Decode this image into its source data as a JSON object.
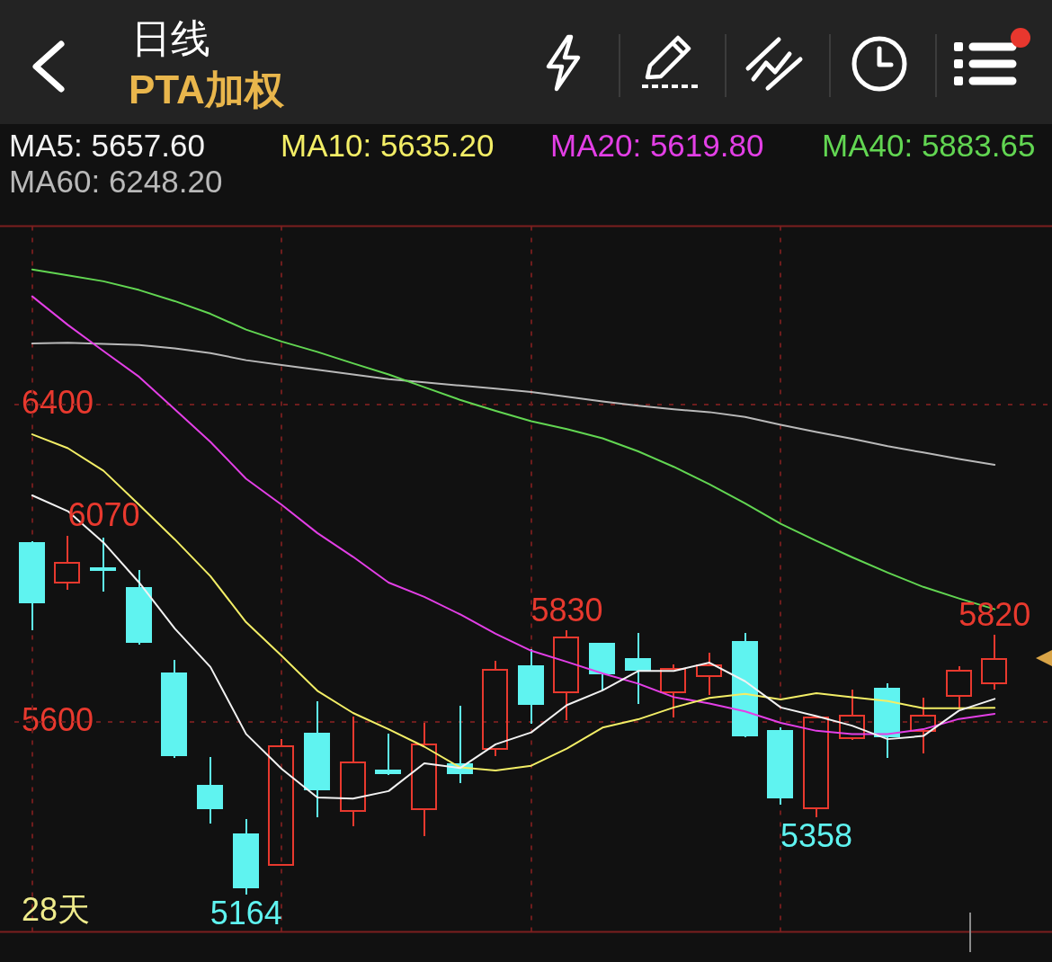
{
  "chart_data": {
    "type": "candlestick",
    "title": "日线",
    "subtitle": "PTA加权",
    "categories": [
      null,
      null,
      null,
      null,
      null,
      null,
      null,
      null,
      null,
      null,
      null,
      null,
      null,
      null,
      null,
      null,
      null,
      null,
      null,
      null,
      null,
      null,
      null,
      null,
      null,
      null,
      null,
      null
    ],
    "ohlc": [
      [
        6052,
        6056,
        5831,
        5899
      ],
      [
        5949,
        6070,
        5933,
        6002
      ],
      [
        5989,
        6065,
        5929,
        5981
      ],
      [
        5939,
        5983,
        5794,
        5798
      ],
      [
        5724,
        5757,
        5509,
        5513
      ],
      [
        5441,
        5511,
        5342,
        5380
      ],
      [
        5318,
        5355,
        5164,
        5180
      ],
      [
        5237,
        5556,
        5236,
        5541
      ],
      [
        5573,
        5651,
        5360,
        5427
      ],
      [
        5373,
        5612,
        5336,
        5499
      ],
      [
        5479,
        5569,
        5465,
        5467
      ],
      [
        5376,
        5597,
        5312,
        5545
      ],
      [
        5495,
        5640,
        5446,
        5467
      ],
      [
        5529,
        5754,
        5513,
        5733
      ],
      [
        5742,
        5782,
        5594,
        5642
      ],
      [
        5672,
        5830,
        5604,
        5815
      ],
      [
        5798,
        5800,
        5679,
        5720
      ],
      [
        5760,
        5824,
        5644,
        5728
      ],
      [
        5672,
        5744,
        5610,
        5736
      ],
      [
        5713,
        5774,
        5667,
        5745
      ],
      [
        5804,
        5825,
        5561,
        5564
      ],
      [
        5580,
        5585,
        5390,
        5406
      ],
      [
        5380,
        5612,
        5358,
        5612
      ],
      [
        5556,
        5682,
        5554,
        5618
      ],
      [
        5686,
        5698,
        5508,
        5561
      ],
      [
        5575,
        5660,
        5519,
        5618
      ],
      [
        5662,
        5740,
        5631,
        5730
      ],
      [
        5694,
        5820,
        5682,
        5761
      ]
    ],
    "colors": [
      "#5ff3f0",
      "#e8392e",
      "#5ff3f0",
      "#5ff3f0",
      "#5ff3f0",
      "#5ff3f0",
      "#5ff3f0",
      "#e8392e",
      "#5ff3f0",
      "#e8392e",
      "#5ff3f0",
      "#e8392e",
      "#5ff3f0",
      "#e8392e",
      "#5ff3f0",
      "#e8392e",
      "#5ff3f0",
      "#5ff3f0",
      "#e8392e",
      "#e8392e",
      "#5ff3f0",
      "#5ff3f0",
      "#e8392e",
      "#e8392e",
      "#5ff3f0",
      "#e8392e",
      "#e8392e",
      "#e8392e"
    ],
    "series": [
      {
        "name": "MA5: 5657.60",
        "type": "line",
        "color": "#f2f2f2",
        "values": [
          6171,
          6131,
          6052,
          5951,
          5835,
          5738,
          5569,
          5481,
          5409,
          5406,
          5425,
          5495,
          5483,
          5543,
          5573,
          5642,
          5679,
          5728,
          5728,
          5749,
          5702,
          5636,
          5614,
          5590,
          5556,
          5564,
          5628,
          5657.6
        ]
      },
      {
        "name": "MA10: 5635.20",
        "type": "line",
        "color": "#f3ee66",
        "values": [
          6325,
          6290,
          6233,
          6147,
          6060,
          5967,
          5851,
          5766,
          5678,
          5622,
          5581,
          5537,
          5485,
          5477,
          5489,
          5532,
          5585,
          5606,
          5636,
          5660,
          5670,
          5656,
          5672,
          5662,
          5652,
          5634,
          5634,
          5635.2
        ]
      },
      {
        "name": "MA20: 5619.80",
        "type": "line",
        "color": "#e33fe6",
        "values": [
          6673,
          6601,
          6535,
          6470,
          6388,
          6306,
          6213,
          6147,
          6076,
          6016,
          5951,
          5915,
          5871,
          5822,
          5779,
          5751,
          5722,
          5696,
          5662,
          5646,
          5626,
          5597,
          5577,
          5569,
          5569,
          5581,
          5607,
          5619.8
        ]
      },
      {
        "name": "MA40: 5883.65",
        "type": "line",
        "color": "#62d652",
        "values": [
          6741,
          6726,
          6711,
          6689,
          6661,
          6629,
          6589,
          6559,
          6533,
          6504,
          6476,
          6444,
          6412,
          6384,
          6358,
          6338,
          6315,
          6282,
          6243,
          6199,
          6151,
          6099,
          6056,
          6015,
          5976,
          5940,
          5911,
          5883.65
        ]
      },
      {
        "name": "MA60: 6248.20",
        "type": "line",
        "color": "#b9b9b9",
        "values": [
          6554,
          6556,
          6553,
          6550,
          6542,
          6530,
          6512,
          6500,
          6488,
          6476,
          6464,
          6456,
          6448,
          6440,
          6432,
          6420,
          6408,
          6397,
          6388,
          6381,
          6369,
          6349,
          6331,
          6314,
          6295,
          6279,
          6263,
          6248.2
        ]
      }
    ],
    "ylim": [
      5070,
      6850
    ],
    "yticks": [
      5600,
      6400
    ],
    "grid": true,
    "legend": "top",
    "tick_labels": "y",
    "annotations": [
      {
        "text": "6070",
        "y": 6070
      },
      {
        "text": "5830",
        "y": 5830
      },
      {
        "text": "5820",
        "y": 5820
      },
      {
        "text": "5164",
        "y": 5164
      },
      {
        "text": "5358",
        "y": 5358
      },
      "28天"
    ]
  }
}
